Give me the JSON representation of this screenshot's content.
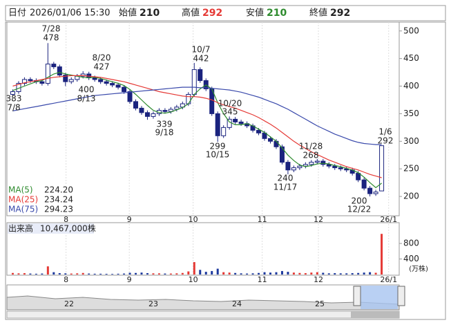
{
  "header": {
    "date_label": "日付",
    "datetime": "2026/01/06 15:30",
    "open_label": "始値",
    "open": 210,
    "high_label": "高値",
    "high": 292,
    "low_label": "安値",
    "low": 210,
    "close_label": "終値",
    "close": 292
  },
  "chart_data": [
    {
      "type": "candlestick",
      "xlim": [
        -1,
        66
      ],
      "ylim": [
        165,
        516
      ],
      "yticks": [
        200,
        250,
        300,
        350,
        400,
        450,
        500
      ],
      "xticks": [
        {
          "value": 9.1,
          "label": "8"
        },
        {
          "value": 19.9,
          "label": "9"
        },
        {
          "value": 30.8,
          "label": "10"
        },
        {
          "value": 42.6,
          "label": "11"
        },
        {
          "value": 52.2,
          "label": "12"
        },
        {
          "value": 64.2,
          "label": "26/1"
        }
      ],
      "xgrid": true,
      "up_color": "#ffffff",
      "down_color": "#1a237e",
      "open": [
        385,
        390,
        405,
        412,
        410,
        408,
        405,
        440,
        435,
        420,
        408,
        412,
        418,
        422,
        415,
        412,
        408,
        405,
        402,
        398,
        390,
        372,
        360,
        352,
        345,
        350,
        356,
        354,
        358,
        362,
        368,
        385,
        430,
        410,
        395,
        350,
        310,
        325,
        340,
        335,
        332,
        328,
        320,
        315,
        305,
        300,
        290,
        262,
        248,
        252,
        255,
        258,
        262,
        264,
        258,
        255,
        252,
        250,
        248,
        242,
        230,
        215,
        205,
        210
      ],
      "high": [
        394,
        409,
        416,
        416,
        414,
        412,
        478,
        444,
        439,
        424,
        416,
        422,
        427,
        426,
        419,
        416,
        412,
        409,
        406,
        402,
        394,
        376,
        364,
        356,
        354,
        360,
        360,
        362,
        366,
        372,
        389,
        442,
        434,
        414,
        399,
        354,
        329,
        345,
        344,
        339,
        336,
        332,
        324,
        319,
        309,
        304,
        294,
        266,
        256,
        259,
        262,
        266,
        268,
        268,
        262,
        259,
        256,
        254,
        252,
        246,
        234,
        219,
        212,
        292
      ],
      "low": [
        383,
        386,
        401,
        406,
        404,
        401,
        401,
        431,
        416,
        400,
        404,
        408,
        414,
        411,
        408,
        404,
        401,
        398,
        394,
        386,
        368,
        356,
        348,
        339,
        341,
        346,
        350,
        350,
        354,
        358,
        364,
        381,
        406,
        391,
        346,
        299,
        306,
        321,
        331,
        328,
        324,
        316,
        311,
        301,
        296,
        286,
        258,
        240,
        244,
        248,
        251,
        254,
        258,
        254,
        251,
        248,
        246,
        244,
        238,
        226,
        211,
        200,
        201,
        210
      ],
      "close": [
        390,
        405,
        412,
        410,
        408,
        405,
        440,
        435,
        420,
        408,
        412,
        418,
        422,
        415,
        412,
        408,
        405,
        402,
        398,
        390,
        372,
        360,
        352,
        345,
        350,
        356,
        354,
        358,
        362,
        368,
        385,
        430,
        410,
        395,
        350,
        310,
        325,
        340,
        335,
        332,
        328,
        320,
        315,
        305,
        300,
        290,
        262,
        248,
        252,
        255,
        258,
        262,
        264,
        258,
        255,
        252,
        250,
        248,
        242,
        230,
        215,
        205,
        208,
        292
      ],
      "lines": [
        {
          "name": "MA(5)",
          "color": "#2e8b2e",
          "value": 224.2,
          "value_label": "224.20",
          "values": [
            392,
            396,
            400,
            404,
            408,
            410,
            416,
            422,
            425,
            422,
            420,
            418,
            416,
            415,
            416,
            414,
            411,
            408,
            405,
            401,
            394,
            385,
            375,
            365,
            356,
            352,
            351,
            353,
            357,
            361,
            368,
            385,
            395,
            402,
            395,
            370,
            350,
            335,
            330,
            330,
            332,
            328,
            322,
            316,
            308,
            300,
            288,
            275,
            265,
            257,
            254,
            256,
            259,
            260,
            259,
            256,
            254,
            251,
            248,
            243,
            235,
            225,
            216,
            224
          ]
        },
        {
          "name": "MA(25)",
          "color": "#e53935",
          "value": 234.24,
          "value_label": "234.24",
          "values": [
            400,
            403,
            406,
            408,
            410,
            412,
            414,
            416,
            417,
            418,
            419,
            419,
            419,
            418,
            417,
            416,
            414,
            412,
            410,
            408,
            405,
            402,
            399,
            396,
            393,
            390,
            388,
            386,
            384,
            382,
            381,
            381,
            380,
            378,
            375,
            370,
            366,
            363,
            360,
            356,
            352,
            348,
            343,
            337,
            331,
            324,
            316,
            308,
            300,
            293,
            287,
            281,
            276,
            271,
            266,
            262,
            258,
            254,
            251,
            248,
            244,
            240,
            237,
            234
          ]
        },
        {
          "name": "MA(75)",
          "color": "#3949ab",
          "value": 294.23,
          "value_label": "294.23",
          "values": [
            355,
            357,
            359,
            361,
            363,
            365,
            367,
            369,
            371,
            373,
            375,
            377,
            379,
            381,
            383,
            384,
            385,
            386,
            387,
            388,
            389,
            390,
            391,
            392,
            393,
            394,
            395,
            396,
            397,
            398,
            398,
            398,
            397,
            397,
            396,
            395,
            394,
            393,
            391,
            389,
            386,
            383,
            380,
            376,
            372,
            368,
            363,
            358,
            352,
            346,
            340,
            334,
            328,
            323,
            318,
            313,
            309,
            305,
            301,
            298,
            296,
            295,
            294,
            294
          ]
        }
      ],
      "annotations": [
        {
          "date": "7/8",
          "price": 383
        },
        {
          "date": "7/28",
          "price": 478
        },
        {
          "date": "8/13",
          "price": 400
        },
        {
          "date": "8/20",
          "price": 427
        },
        {
          "date": "9/18",
          "price": 339
        },
        {
          "date": "10/7",
          "price": 442
        },
        {
          "date": "10/15",
          "price": 299
        },
        {
          "date": "10/20",
          "price": 345
        },
        {
          "date": "11/17",
          "price": 240
        },
        {
          "date": "11/28",
          "price": 268
        },
        {
          "date": "12/22",
          "price": 200
        },
        {
          "date": "1/6",
          "price": 292
        }
      ]
    },
    {
      "type": "bar",
      "title": "出来高",
      "total_label": "10,467,000株",
      "unit_label": "(万株)",
      "xlim": [
        -1,
        66
      ],
      "ylim": [
        0,
        1300
      ],
      "yticks": [
        400,
        800
      ],
      "xticks": [
        {
          "value": 9.1,
          "label": "8"
        },
        {
          "value": 19.9,
          "label": "9"
        },
        {
          "value": 30.8,
          "label": "10"
        },
        {
          "value": 42.6,
          "label": "11"
        },
        {
          "value": 52.2,
          "label": "12"
        },
        {
          "value": 64.2,
          "label": "26/1"
        }
      ],
      "up_color": "#e53935",
      "down_color": "#1e3a9e",
      "values": [
        40,
        30,
        35,
        25,
        20,
        25,
        210,
        60,
        35,
        30,
        25,
        30,
        40,
        25,
        20,
        20,
        18,
        15,
        20,
        25,
        45,
        40,
        50,
        35,
        30,
        30,
        25,
        25,
        30,
        40,
        80,
        320,
        120,
        70,
        90,
        150,
        60,
        50,
        40,
        30,
        25,
        30,
        40,
        60,
        50,
        60,
        90,
        70,
        50,
        40,
        35,
        50,
        60,
        45,
        30,
        35,
        30,
        30,
        35,
        40,
        50,
        60,
        45,
        1047
      ]
    }
  ],
  "navigator": {
    "labels": [
      "22",
      "23",
      "24",
      "25"
    ]
  }
}
